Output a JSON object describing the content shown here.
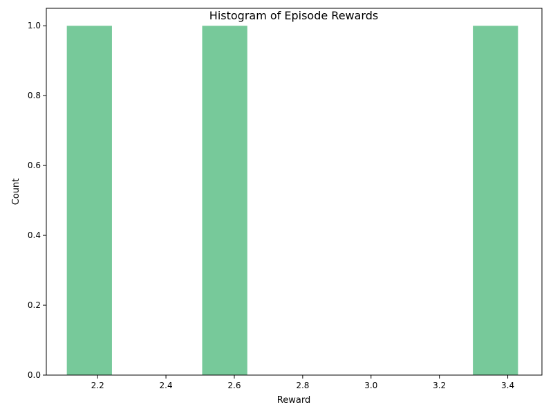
{
  "chart_data": {
    "type": "bar",
    "title": "Histogram of Episode Rewards",
    "xlabel": "Reward",
    "ylabel": "Count",
    "bins": [
      {
        "x0": 2.11,
        "x1": 2.242,
        "count": 1
      },
      {
        "x0": 2.242,
        "x1": 2.374,
        "count": 0
      },
      {
        "x0": 2.374,
        "x1": 2.506,
        "count": 0
      },
      {
        "x0": 2.506,
        "x1": 2.638,
        "count": 1
      },
      {
        "x0": 2.638,
        "x1": 2.77,
        "count": 0
      },
      {
        "x0": 2.77,
        "x1": 2.902,
        "count": 0
      },
      {
        "x0": 2.902,
        "x1": 3.034,
        "count": 0
      },
      {
        "x0": 3.034,
        "x1": 3.166,
        "count": 0
      },
      {
        "x0": 3.166,
        "x1": 3.298,
        "count": 0
      },
      {
        "x0": 3.298,
        "x1": 3.43,
        "count": 1
      }
    ],
    "xlim": [
      2.05,
      3.5
    ],
    "ylim": [
      0,
      1.05
    ],
    "xticks": [
      2.2,
      2.4,
      2.6,
      2.8,
      3.0,
      3.2,
      3.4
    ],
    "xtick_labels": [
      "2.2",
      "2.4",
      "2.6",
      "2.8",
      "3.0",
      "3.2",
      "3.4"
    ],
    "yticks": [
      0.0,
      0.2,
      0.4,
      0.6,
      0.8,
      1.0
    ],
    "ytick_labels": [
      "0.0",
      "0.2",
      "0.4",
      "0.6",
      "0.8",
      "1.0"
    ],
    "grid": false,
    "bar_color": "#77c99a"
  }
}
